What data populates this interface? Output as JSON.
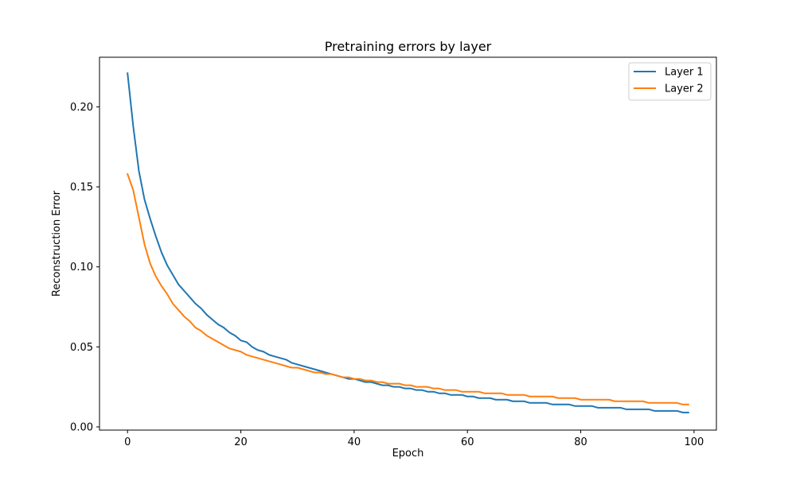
{
  "chart_data": {
    "type": "line",
    "title": "Pretraining errors by layer",
    "xlabel": "Epoch",
    "ylabel": "Reconstruction Error",
    "xlim": [
      -4.95,
      103.95
    ],
    "ylim": [
      -0.002,
      0.231
    ],
    "xticks": [
      0,
      20,
      40,
      60,
      80,
      100
    ],
    "xtick_labels": [
      "0",
      "20",
      "40",
      "60",
      "80",
      "100"
    ],
    "yticks": [
      0.0,
      0.05,
      0.1,
      0.15,
      0.2
    ],
    "ytick_labels": [
      "0.00",
      "0.05",
      "0.10",
      "0.15",
      "0.20"
    ],
    "grid": false,
    "legend_position": "upper-right",
    "series": [
      {
        "name": "Layer 1",
        "color": "#1f77b4",
        "x": [
          0,
          1,
          2,
          3,
          4,
          5,
          6,
          7,
          8,
          9,
          10,
          11,
          12,
          13,
          14,
          15,
          16,
          17,
          18,
          19,
          20,
          21,
          22,
          23,
          24,
          25,
          26,
          27,
          28,
          29,
          30,
          31,
          32,
          33,
          34,
          35,
          36,
          37,
          38,
          39,
          40,
          41,
          42,
          43,
          44,
          45,
          46,
          47,
          48,
          49,
          50,
          51,
          52,
          53,
          54,
          55,
          56,
          57,
          58,
          59,
          60,
          61,
          62,
          63,
          64,
          65,
          66,
          67,
          68,
          69,
          70,
          71,
          72,
          73,
          74,
          75,
          76,
          77,
          78,
          79,
          80,
          81,
          82,
          83,
          84,
          85,
          86,
          87,
          88,
          89,
          90,
          91,
          92,
          93,
          94,
          95,
          96,
          97,
          98,
          99
        ],
        "y": [
          0.221,
          0.188,
          0.16,
          0.142,
          0.13,
          0.119,
          0.109,
          0.101,
          0.095,
          0.089,
          0.085,
          0.081,
          0.077,
          0.074,
          0.07,
          0.067,
          0.064,
          0.062,
          0.059,
          0.057,
          0.054,
          0.053,
          0.05,
          0.048,
          0.047,
          0.045,
          0.044,
          0.043,
          0.042,
          0.04,
          0.039,
          0.038,
          0.037,
          0.036,
          0.035,
          0.034,
          0.033,
          0.032,
          0.031,
          0.03,
          0.03,
          0.029,
          0.028,
          0.028,
          0.027,
          0.026,
          0.026,
          0.025,
          0.025,
          0.024,
          0.024,
          0.023,
          0.023,
          0.022,
          0.022,
          0.021,
          0.021,
          0.02,
          0.02,
          0.02,
          0.019,
          0.019,
          0.018,
          0.018,
          0.018,
          0.017,
          0.017,
          0.017,
          0.016,
          0.016,
          0.016,
          0.015,
          0.015,
          0.015,
          0.015,
          0.014,
          0.014,
          0.014,
          0.014,
          0.013,
          0.013,
          0.013,
          0.013,
          0.012,
          0.012,
          0.012,
          0.012,
          0.012,
          0.011,
          0.011,
          0.011,
          0.011,
          0.011,
          0.01,
          0.01,
          0.01,
          0.01,
          0.01,
          0.009,
          0.009
        ]
      },
      {
        "name": "Layer 2",
        "color": "#ff7f0e",
        "x": [
          0,
          1,
          2,
          3,
          4,
          5,
          6,
          7,
          8,
          9,
          10,
          11,
          12,
          13,
          14,
          15,
          16,
          17,
          18,
          19,
          20,
          21,
          22,
          23,
          24,
          25,
          26,
          27,
          28,
          29,
          30,
          31,
          32,
          33,
          34,
          35,
          36,
          37,
          38,
          39,
          40,
          41,
          42,
          43,
          44,
          45,
          46,
          47,
          48,
          49,
          50,
          51,
          52,
          53,
          54,
          55,
          56,
          57,
          58,
          59,
          60,
          61,
          62,
          63,
          64,
          65,
          66,
          67,
          68,
          69,
          70,
          71,
          72,
          73,
          74,
          75,
          76,
          77,
          78,
          79,
          80,
          81,
          82,
          83,
          84,
          85,
          86,
          87,
          88,
          89,
          90,
          91,
          92,
          93,
          94,
          95,
          96,
          97,
          98,
          99
        ],
        "y": [
          0.158,
          0.148,
          0.131,
          0.114,
          0.102,
          0.094,
          0.088,
          0.083,
          0.077,
          0.073,
          0.069,
          0.066,
          0.062,
          0.06,
          0.057,
          0.055,
          0.053,
          0.051,
          0.049,
          0.048,
          0.047,
          0.045,
          0.044,
          0.043,
          0.042,
          0.041,
          0.04,
          0.039,
          0.038,
          0.037,
          0.037,
          0.036,
          0.035,
          0.034,
          0.034,
          0.033,
          0.033,
          0.032,
          0.031,
          0.031,
          0.03,
          0.03,
          0.029,
          0.029,
          0.028,
          0.028,
          0.027,
          0.027,
          0.027,
          0.026,
          0.026,
          0.025,
          0.025,
          0.025,
          0.024,
          0.024,
          0.023,
          0.023,
          0.023,
          0.022,
          0.022,
          0.022,
          0.022,
          0.021,
          0.021,
          0.021,
          0.021,
          0.02,
          0.02,
          0.02,
          0.02,
          0.019,
          0.019,
          0.019,
          0.019,
          0.019,
          0.018,
          0.018,
          0.018,
          0.018,
          0.017,
          0.017,
          0.017,
          0.017,
          0.017,
          0.017,
          0.016,
          0.016,
          0.016,
          0.016,
          0.016,
          0.016,
          0.015,
          0.015,
          0.015,
          0.015,
          0.015,
          0.015,
          0.014,
          0.014
        ]
      }
    ]
  }
}
